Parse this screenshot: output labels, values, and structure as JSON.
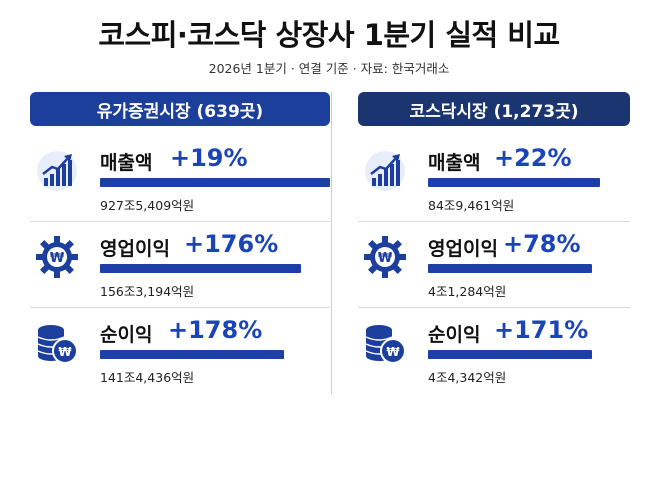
{
  "header": {
    "title": "코스피·코스닥 상장사 1분기 실적 비교",
    "subtitle": "2026년 1분기 · 연결 기준 · 자료: 한국거래소"
  },
  "colors": {
    "accent": "#1a44b8",
    "bar": "#1c40a8",
    "kospi_header": "#1d3f9c",
    "kosdaq_header": "#1a3570"
  },
  "markets": [
    {
      "header": "유가증권시장 (639곳)",
      "metrics": [
        {
          "icon": "chart-up-icon",
          "name": "매출액",
          "change": "+19%",
          "value": "927조5,409억원",
          "bar_fill": 1.0
        },
        {
          "icon": "won-gear-icon",
          "name": "영업이익",
          "change": "+176%",
          "value": "156조3,194억원",
          "bar_fill": 0.875
        },
        {
          "icon": "coin-stack-icon",
          "name": "순이익",
          "change": "+178%",
          "value": "141조4,436억원",
          "bar_fill": 0.8
        }
      ]
    },
    {
      "header": "코스닥시장 (1,273곳)",
      "metrics": [
        {
          "icon": "chart-up-icon",
          "name": "매출액",
          "change": "+22%",
          "value": "84조9,461억원",
          "bar_fill": 0.955
        },
        {
          "icon": "won-gear-icon",
          "name": "영업이익",
          "change": "+78%",
          "value": "4조1,284억원",
          "bar_fill": 0.91
        },
        {
          "icon": "coin-stack-icon",
          "name": "순이익",
          "change": "+171%",
          "value": "4조4,342억원",
          "bar_fill": 0.91
        }
      ]
    }
  ]
}
